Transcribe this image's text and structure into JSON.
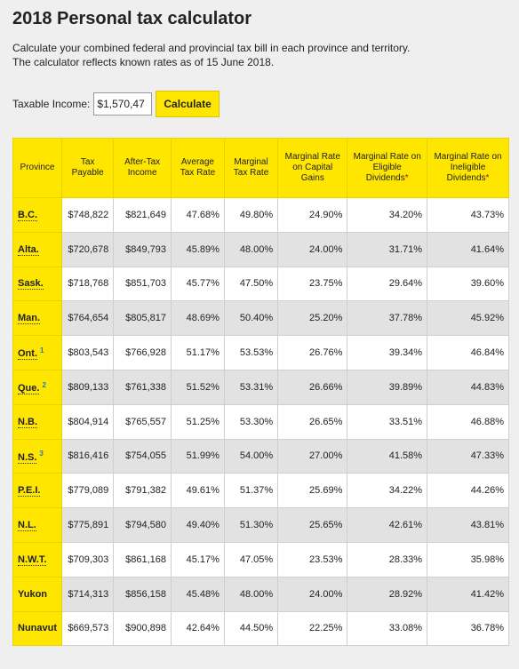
{
  "header": {
    "title": "2018 Personal tax calculator",
    "description": [
      "Calculate your combined federal and provincial tax bill in each province and territory.",
      "The calculator reflects known rates as of 15 June 2018."
    ]
  },
  "form": {
    "label": "Taxable Income:",
    "input_value": "$1,570,47",
    "button": "Calculate"
  },
  "table": {
    "columns": [
      {
        "text": "Province"
      },
      {
        "text": "Tax Payable"
      },
      {
        "text": "After-Tax Income"
      },
      {
        "text": "Average Tax Rate"
      },
      {
        "text": "Marginal Tax Rate"
      },
      {
        "text": "Marginal Rate on Capital Gains"
      },
      {
        "text": "Marginal Rate on Eligible Dividends",
        "mark": "*"
      },
      {
        "text": "Marginal Rate on Ineligible Dividends",
        "mark": "*"
      }
    ],
    "rows": [
      {
        "province": "B.C.",
        "link": true,
        "cells": [
          "$748,822",
          "$821,649",
          "47.68%",
          "49.80%",
          "24.90%",
          "34.20%",
          "43.73%"
        ]
      },
      {
        "province": "Alta.",
        "link": true,
        "cells": [
          "$720,678",
          "$849,793",
          "45.89%",
          "48.00%",
          "24.00%",
          "31.71%",
          "41.64%"
        ]
      },
      {
        "province": "Sask.",
        "link": true,
        "cells": [
          "$718,768",
          "$851,703",
          "45.77%",
          "47.50%",
          "23.75%",
          "29.64%",
          "39.60%"
        ]
      },
      {
        "province": "Man.",
        "link": true,
        "cells": [
          "$764,654",
          "$805,817",
          "48.69%",
          "50.40%",
          "25.20%",
          "37.78%",
          "45.92%"
        ]
      },
      {
        "province": "Ont.",
        "link": true,
        "note": "1",
        "cells": [
          "$803,543",
          "$766,928",
          "51.17%",
          "53.53%",
          "26.76%",
          "39.34%",
          "46.84%"
        ]
      },
      {
        "province": "Que.",
        "link": true,
        "note": "2",
        "cells": [
          "$809,133",
          "$761,338",
          "51.52%",
          "53.31%",
          "26.66%",
          "39.89%",
          "44.83%"
        ]
      },
      {
        "province": "N.B.",
        "link": true,
        "cells": [
          "$804,914",
          "$765,557",
          "51.25%",
          "53.30%",
          "26.65%",
          "33.51%",
          "46.88%"
        ]
      },
      {
        "province": "N.S.",
        "link": true,
        "note": "3",
        "cells": [
          "$816,416",
          "$754,055",
          "51.99%",
          "54.00%",
          "27.00%",
          "41.58%",
          "47.33%"
        ]
      },
      {
        "province": "P.E.I.",
        "link": true,
        "cells": [
          "$779,089",
          "$791,382",
          "49.61%",
          "51.37%",
          "25.69%",
          "34.22%",
          "44.26%"
        ]
      },
      {
        "province": "N.L.",
        "link": true,
        "cells": [
          "$775,891",
          "$794,580",
          "49.40%",
          "51.30%",
          "25.65%",
          "42.61%",
          "43.81%"
        ]
      },
      {
        "province": "N.W.T.",
        "link": true,
        "cells": [
          "$709,303",
          "$861,168",
          "45.17%",
          "47.05%",
          "23.53%",
          "28.33%",
          "35.98%"
        ]
      },
      {
        "province": "Yukon",
        "link": false,
        "cells": [
          "$714,313",
          "$856,158",
          "45.48%",
          "48.00%",
          "24.00%",
          "28.92%",
          "41.42%"
        ]
      },
      {
        "province": "Nunavut",
        "link": false,
        "cells": [
          "$669,573",
          "$900,898",
          "42.64%",
          "44.50%",
          "22.25%",
          "33.08%",
          "36.78%"
        ]
      }
    ]
  }
}
